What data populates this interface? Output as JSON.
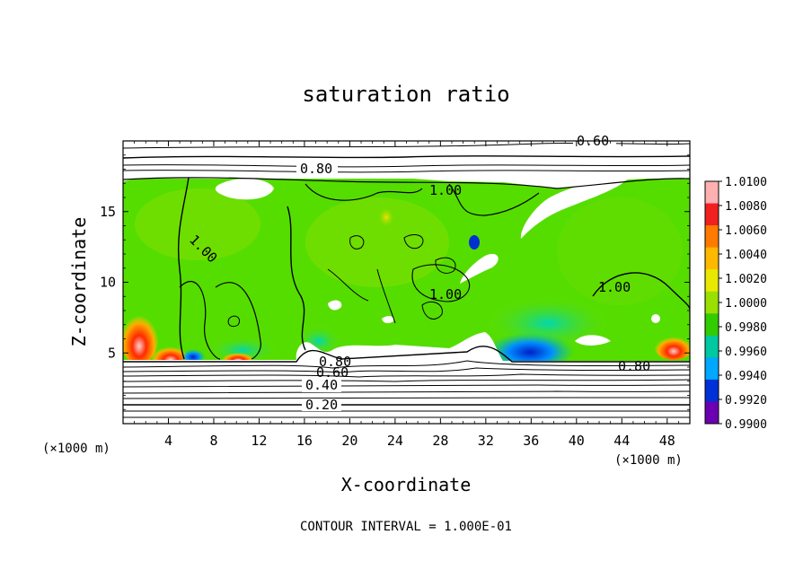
{
  "chart_data": {
    "type": "heatmap",
    "title": "saturation ratio",
    "xlabel": "X-coordinate",
    "ylabel": "Z-coordinate",
    "x_unit": "(×1000 m)",
    "y_unit": "(×1000 m)",
    "xlim": [
      0,
      50
    ],
    "ylim": [
      0,
      20
    ],
    "x_ticks": [
      "4",
      "8",
      "12",
      "16",
      "20",
      "24",
      "28",
      "32",
      "36",
      "40",
      "44",
      "48"
    ],
    "y_ticks": [
      "5",
      "10",
      "15"
    ],
    "colorbar": {
      "min": 0.99,
      "max": 1.01,
      "labels": [
        "1.0100",
        "1.0080",
        "1.0060",
        "1.0040",
        "1.0020",
        "1.0000",
        "0.9980",
        "0.9960",
        "0.9940",
        "0.9920",
        "0.9900"
      ],
      "colors": [
        "#ffb0b0",
        "#f02020",
        "#ff7a00",
        "#ffb800",
        "#e8e800",
        "#99e000",
        "#33cc00",
        "#00c8a0",
        "#00a8ff",
        "#0030d8",
        "#6a00b0"
      ]
    },
    "contour_labels": [
      "0.60",
      "0.80",
      "1.00",
      "1.00",
      "1.00",
      "1.00",
      "0.80",
      "0.80",
      "0.60",
      "0.40",
      "0.20"
    ],
    "footer": "CONTOUR INTERVAL = 1.000E-01"
  }
}
